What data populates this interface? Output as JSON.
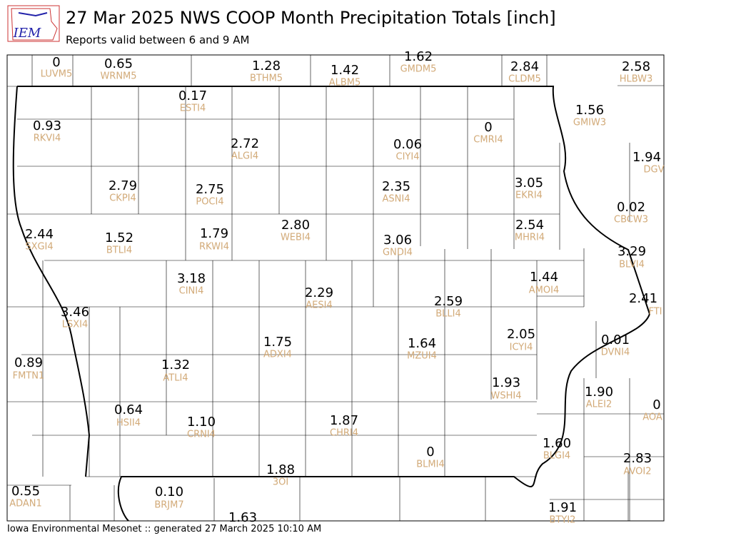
{
  "header": {
    "logo_text": "IEM",
    "title": "27 Mar 2025 NWS COOP Month Precipitation Totals [inch]",
    "subtitle": "Reports valid between 6 and 9 AM"
  },
  "footer": "Iowa Environmental Mesonet :: generated 27 March 2025 10:10 AM",
  "stations": [
    {
      "value": "0",
      "id": "LUVM5"
    },
    {
      "value": "0.65",
      "id": "WRNM5"
    },
    {
      "value": "1.28",
      "id": "BTHM5"
    },
    {
      "value": "1.42",
      "id": "ALBM5"
    },
    {
      "value": "1.62",
      "id": "GMDM5"
    },
    {
      "value": "2.84",
      "id": "CLDM5"
    },
    {
      "value": "2.58",
      "id": "HLBW3"
    },
    {
      "value": "0.17",
      "id": "ESTI4"
    },
    {
      "value": "0.93",
      "id": "RKVI4"
    },
    {
      "value": "0",
      "id": "CMRI4"
    },
    {
      "value": "1.56",
      "id": "GMIW3"
    },
    {
      "value": "2.72",
      "id": "ALGI4"
    },
    {
      "value": "0.06",
      "id": "CIYI4"
    },
    {
      "value": "1.94",
      "id": "DGV"
    },
    {
      "value": "2.79",
      "id": "CKPI4"
    },
    {
      "value": "2.75",
      "id": "POCI4"
    },
    {
      "value": "2.35",
      "id": "ASNI4"
    },
    {
      "value": "3.05",
      "id": "EKRI4"
    },
    {
      "value": "0.02",
      "id": "CBCW3"
    },
    {
      "value": "2.44",
      "id": "SXGI4"
    },
    {
      "value": "1.52",
      "id": "BTLI4"
    },
    {
      "value": "1.79",
      "id": "RKWI4"
    },
    {
      "value": "2.80",
      "id": "WEBI4"
    },
    {
      "value": "3.06",
      "id": "GNDI4"
    },
    {
      "value": "2.54",
      "id": "MHRI4"
    },
    {
      "value": "3.29",
      "id": "BLVI4"
    },
    {
      "value": "3.18",
      "id": "CINI4"
    },
    {
      "value": "1.44",
      "id": "AMOI4"
    },
    {
      "value": "2.29",
      "id": "AESI4"
    },
    {
      "value": "2.59",
      "id": "BLLI4"
    },
    {
      "value": "2.41",
      "id": "FTI"
    },
    {
      "value": "3.46",
      "id": "LSXI4"
    },
    {
      "value": "2.05",
      "id": "ICYI4"
    },
    {
      "value": "0.01",
      "id": "DVNI4"
    },
    {
      "value": "1.75",
      "id": "ADXI4"
    },
    {
      "value": "1.64",
      "id": "MZUI4"
    },
    {
      "value": "0.89",
      "id": "FMTN1"
    },
    {
      "value": "1.32",
      "id": "ATLI4"
    },
    {
      "value": "1.93",
      "id": "WSHI4"
    },
    {
      "value": "1.90",
      "id": "ALEI2"
    },
    {
      "value": "0",
      "id": "AOA"
    },
    {
      "value": "0.64",
      "id": "HSII4"
    },
    {
      "value": "1.10",
      "id": "CRNI4"
    },
    {
      "value": "1.87",
      "id": "CHRI4"
    },
    {
      "value": "0",
      "id": "BLMI4"
    },
    {
      "value": "1.60",
      "id": "BLGI4"
    },
    {
      "value": "2.83",
      "id": "AVOI2"
    },
    {
      "value": "1.88",
      "id": "3OI"
    },
    {
      "value": "0.55",
      "id": "ADAN1"
    },
    {
      "value": "0.10",
      "id": "BRJM7"
    },
    {
      "value": "1.63"
    },
    {
      "value": "1.91",
      "id": "BTYI2"
    }
  ]
}
